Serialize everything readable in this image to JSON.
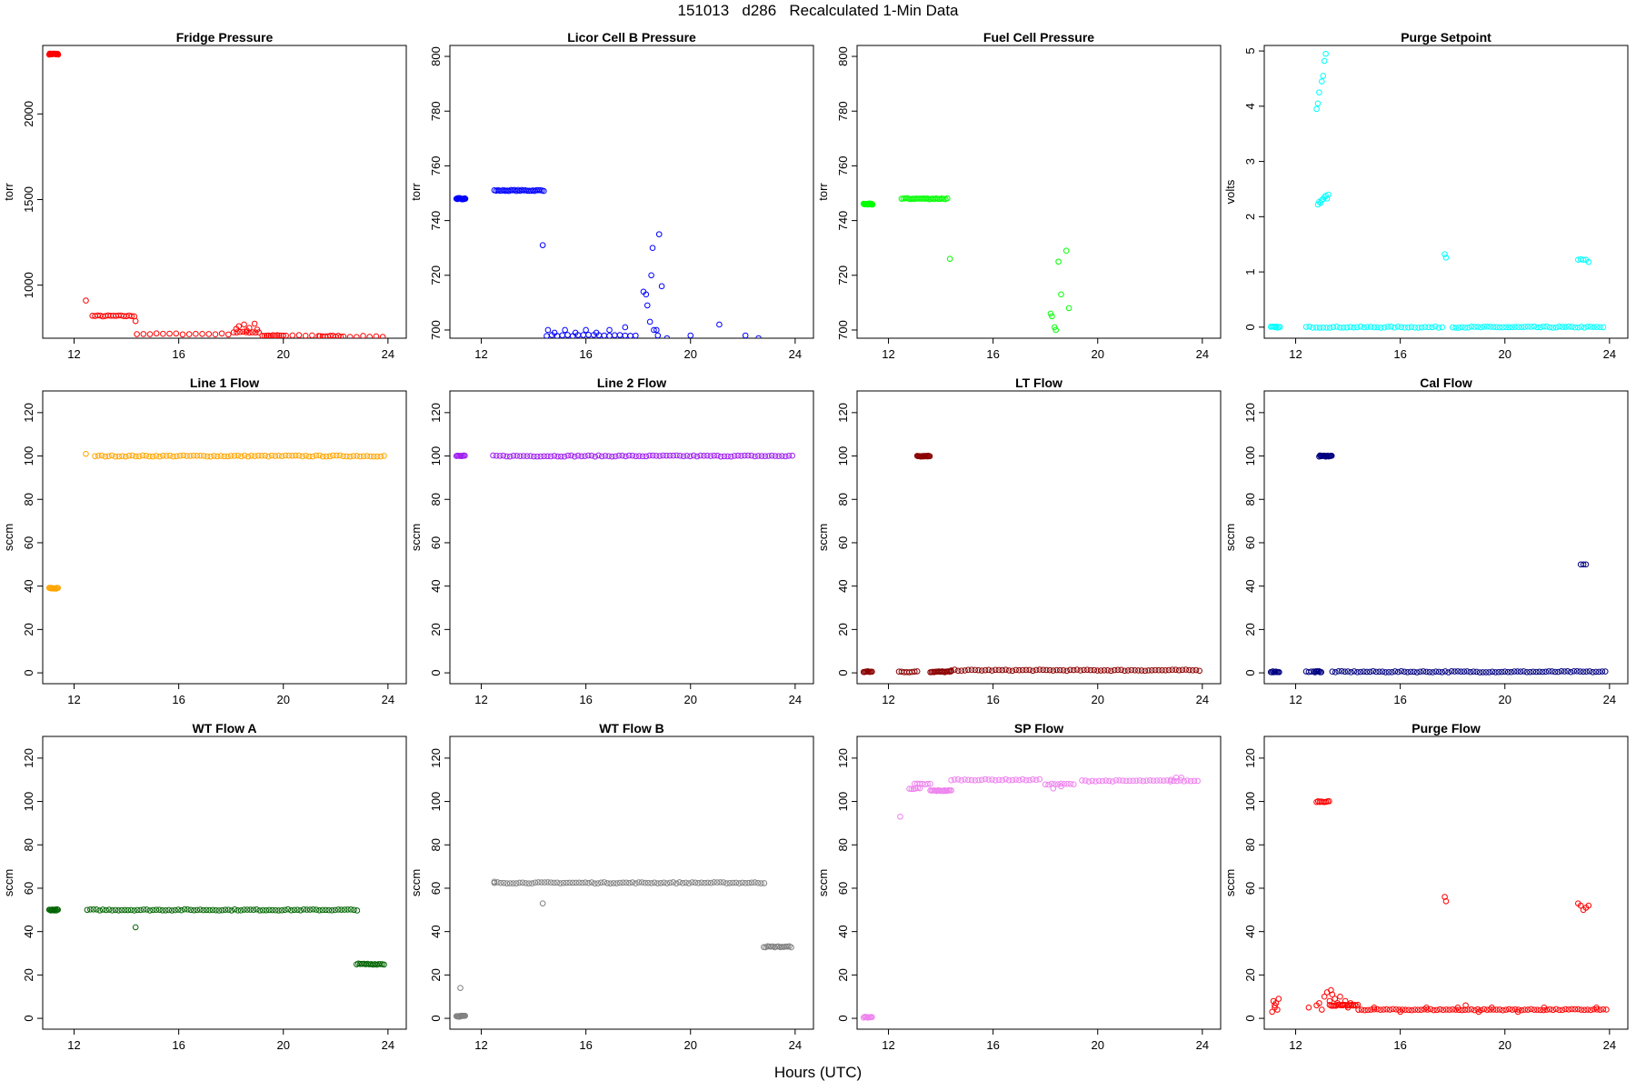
{
  "figure": {
    "title": "151013   d286   Recalculated 1-Min Data",
    "x_common_label": "Hours (UTC)"
  },
  "chart_data": [
    {
      "type": "scatter",
      "title": "Fridge Pressure",
      "ylabel": "torr",
      "color": "#ff0000",
      "xlim": [
        10.8,
        24.7
      ],
      "ylim": [
        690,
        2400
      ],
      "xticks": [
        12,
        16,
        20,
        24
      ],
      "yticks": [
        1000,
        1500,
        2000
      ],
      "segments": [
        [
          11.05,
          11.4,
          2350,
          0.02
        ],
        [
          12.7,
          14.3,
          820,
          0.1
        ],
        [
          14.4,
          18.1,
          715,
          0.25
        ],
        [
          18.1,
          19.1,
          725,
          0.12
        ],
        [
          19.2,
          20.0,
          705,
          0.08
        ],
        [
          20.1,
          21.4,
          705,
          0.25
        ],
        [
          21.4,
          22.2,
          702,
          0.1
        ],
        [
          22.3,
          23.9,
          700,
          0.25
        ]
      ],
      "points": [
        [
          12.45,
          910
        ],
        [
          14.35,
          790
        ],
        [
          18.3,
          760
        ],
        [
          18.5,
          770
        ],
        [
          18.7,
          750
        ],
        [
          18.9,
          775
        ],
        [
          18.6,
          735
        ],
        [
          19.0,
          740
        ],
        [
          18.2,
          745
        ]
      ]
    },
    {
      "type": "scatter",
      "title": "Licor Cell B Pressure",
      "ylabel": "torr",
      "color": "#0000ff",
      "xlim": [
        10.8,
        24.7
      ],
      "ylim": [
        697,
        804
      ],
      "xticks": [
        12,
        16,
        20,
        24
      ],
      "yticks": [
        700,
        720,
        740,
        760,
        780,
        800
      ],
      "segments": [
        [
          11.05,
          11.4,
          748,
          0.02
        ],
        [
          12.5,
          14.4,
          751,
          0.07
        ],
        [
          14.5,
          17.9,
          698,
          0.2
        ]
      ],
      "points": [
        [
          14.35,
          731
        ],
        [
          14.55,
          700
        ],
        [
          14.8,
          699
        ],
        [
          15.2,
          700
        ],
        [
          15.6,
          699
        ],
        [
          16.0,
          700
        ],
        [
          16.4,
          699
        ],
        [
          16.9,
          700
        ],
        [
          17.5,
          701
        ],
        [
          18.2,
          714
        ],
        [
          18.3,
          713
        ],
        [
          18.35,
          709
        ],
        [
          18.45,
          703
        ],
        [
          18.5,
          720
        ],
        [
          18.55,
          730
        ],
        [
          18.7,
          700
        ],
        [
          18.8,
          735
        ],
        [
          18.9,
          716
        ],
        [
          18.6,
          700
        ],
        [
          18.75,
          698
        ],
        [
          19.1,
          697
        ],
        [
          20.0,
          698
        ],
        [
          21.1,
          702
        ],
        [
          22.1,
          698
        ],
        [
          22.6,
          697
        ]
      ]
    },
    {
      "type": "scatter",
      "title": "Fuel Cell Pressure",
      "ylabel": "torr",
      "color": "#00ff00",
      "xlim": [
        10.8,
        24.7
      ],
      "ylim": [
        697,
        804
      ],
      "xticks": [
        12,
        16,
        20,
        24
      ],
      "yticks": [
        700,
        720,
        740,
        760,
        780,
        800
      ],
      "segments": [
        [
          11.05,
          11.4,
          746,
          0.02
        ],
        [
          12.5,
          14.3,
          748,
          0.07
        ]
      ],
      "points": [
        [
          14.35,
          726
        ],
        [
          18.2,
          706
        ],
        [
          18.25,
          705
        ],
        [
          18.35,
          701
        ],
        [
          18.4,
          700
        ],
        [
          18.5,
          725
        ],
        [
          18.6,
          713
        ],
        [
          18.8,
          729
        ],
        [
          18.9,
          708
        ]
      ]
    },
    {
      "type": "scatter",
      "title": "Purge Setpoint",
      "ylabel": "volts",
      "color": "#00ffff",
      "xlim": [
        10.8,
        24.7
      ],
      "ylim": [
        -0.2,
        5.1
      ],
      "xticks": [
        12,
        16,
        20,
        24
      ],
      "yticks": [
        0,
        1,
        2,
        3,
        4,
        5
      ],
      "segments": [
        [
          11.05,
          11.4,
          0,
          0.05
        ],
        [
          12.4,
          17.6,
          0,
          0.13
        ],
        [
          18.0,
          23.8,
          0,
          0.12
        ]
      ],
      "points": [
        [
          12.8,
          3.95
        ],
        [
          12.85,
          4.05
        ],
        [
          12.9,
          4.25
        ],
        [
          13.0,
          4.45
        ],
        [
          13.05,
          4.55
        ],
        [
          13.1,
          4.82
        ],
        [
          13.15,
          4.95
        ],
        [
          12.85,
          2.22
        ],
        [
          12.9,
          2.27
        ],
        [
          12.95,
          2.25
        ],
        [
          13.0,
          2.3
        ],
        [
          13.05,
          2.32
        ],
        [
          13.1,
          2.35
        ],
        [
          13.15,
          2.38
        ],
        [
          13.2,
          2.33
        ],
        [
          13.25,
          2.4
        ],
        [
          17.7,
          1.32
        ],
        [
          17.75,
          1.26
        ],
        [
          22.8,
          1.22
        ],
        [
          22.9,
          1.23
        ],
        [
          23.0,
          1.22
        ],
        [
          23.1,
          1.22
        ],
        [
          23.2,
          1.18
        ]
      ]
    },
    {
      "type": "scatter",
      "title": "Line 1 Flow",
      "ylabel": "sccm",
      "color": "#ffa500",
      "xlim": [
        10.8,
        24.7
      ],
      "ylim": [
        -5,
        130
      ],
      "xticks": [
        12,
        16,
        20,
        24
      ],
      "yticks": [
        0,
        20,
        40,
        60,
        80,
        100,
        120
      ],
      "segments": [
        [
          11.05,
          11.4,
          39,
          0.03
        ],
        [
          12.8,
          23.9,
          100,
          0.13
        ]
      ],
      "points": [
        [
          12.45,
          101
        ]
      ]
    },
    {
      "type": "scatter",
      "title": "Line 2 Flow",
      "ylabel": "sccm",
      "color": "#a020f0",
      "xlim": [
        10.8,
        24.7
      ],
      "ylim": [
        -5,
        130
      ],
      "xticks": [
        12,
        16,
        20,
        24
      ],
      "yticks": [
        0,
        20,
        40,
        60,
        80,
        100,
        120
      ],
      "segments": [
        [
          11.05,
          11.4,
          100,
          0.04
        ],
        [
          12.45,
          23.9,
          100,
          0.13
        ]
      ],
      "points": []
    },
    {
      "type": "scatter",
      "title": "LT Flow",
      "ylabel": "sccm",
      "color": "#8b0000",
      "xlim": [
        10.8,
        24.7
      ],
      "ylim": [
        -5,
        130
      ],
      "xticks": [
        12,
        16,
        20,
        24
      ],
      "yticks": [
        0,
        20,
        40,
        60,
        80,
        100,
        120
      ],
      "segments": [
        [
          11.05,
          11.4,
          0.5,
          0.04
        ],
        [
          12.4,
          13.1,
          0.5,
          0.1
        ],
        [
          13.1,
          13.6,
          100,
          0.03
        ],
        [
          13.6,
          14.4,
          0.5,
          0.05
        ],
        [
          14.4,
          23.9,
          1.2,
          0.13
        ]
      ],
      "points": []
    },
    {
      "type": "scatter",
      "title": "Cal Flow",
      "ylabel": "sccm",
      "color": "#000080",
      "xlim": [
        10.8,
        24.7
      ],
      "ylim": [
        -5,
        130
      ],
      "xticks": [
        12,
        16,
        20,
        24
      ],
      "yticks": [
        0,
        20,
        40,
        60,
        80,
        100,
        120
      ],
      "segments": [
        [
          11.05,
          11.4,
          0.5,
          0.04
        ],
        [
          12.4,
          12.6,
          0.5,
          0.1
        ],
        [
          12.7,
          13.0,
          0.5,
          0.04
        ],
        [
          12.9,
          13.4,
          100,
          0.03
        ],
        [
          13.4,
          23.9,
          0.5,
          0.12
        ]
      ],
      "points": [
        [
          22.9,
          50
        ],
        [
          23.0,
          50
        ],
        [
          23.1,
          50
        ]
      ]
    },
    {
      "type": "scatter",
      "title": "WT Flow A",
      "ylabel": "sccm",
      "color": "#006400",
      "xlim": [
        10.8,
        24.7
      ],
      "ylim": [
        -5,
        130
      ],
      "xticks": [
        12,
        16,
        20,
        24
      ],
      "yticks": [
        0,
        20,
        40,
        60,
        80,
        100,
        120
      ],
      "segments": [
        [
          11.05,
          11.4,
          50,
          0.03
        ],
        [
          12.5,
          22.9,
          50,
          0.12
        ],
        [
          22.8,
          23.9,
          25,
          0.07
        ]
      ],
      "points": [
        [
          14.35,
          42
        ]
      ]
    },
    {
      "type": "scatter",
      "title": "WT Flow B",
      "ylabel": "sccm",
      "color": "#808080",
      "xlim": [
        10.8,
        24.7
      ],
      "ylim": [
        -5,
        130
      ],
      "xticks": [
        12,
        16,
        20,
        24
      ],
      "yticks": [
        0,
        20,
        40,
        60,
        80,
        100,
        120
      ],
      "segments": [
        [
          11.05,
          11.4,
          1,
          0.03
        ],
        [
          12.5,
          22.9,
          62.5,
          0.12
        ],
        [
          22.8,
          23.9,
          33,
          0.07
        ]
      ],
      "points": [
        [
          11.2,
          14
        ],
        [
          12.5,
          63
        ],
        [
          14.35,
          53
        ]
      ]
    },
    {
      "type": "scatter",
      "title": "SP Flow",
      "ylabel": "sccm",
      "color": "#ee82ee",
      "xlim": [
        10.8,
        24.7
      ],
      "ylim": [
        -5,
        130
      ],
      "xticks": [
        12,
        16,
        20,
        24
      ],
      "yticks": [
        0,
        20,
        40,
        60,
        80,
        100,
        120
      ],
      "segments": [
        [
          11.05,
          11.4,
          0.5,
          0.04
        ],
        [
          12.8,
          13.2,
          106,
          0.08
        ],
        [
          13.0,
          13.6,
          108,
          0.1
        ],
        [
          13.6,
          14.4,
          105,
          0.05
        ],
        [
          14.4,
          17.8,
          110,
          0.13
        ],
        [
          18.0,
          19.1,
          108,
          0.12
        ],
        [
          19.4,
          23.9,
          109.5,
          0.13
        ]
      ],
      "points": [
        [
          12.45,
          93
        ],
        [
          18.3,
          106
        ],
        [
          18.6,
          107
        ],
        [
          22.8,
          110
        ],
        [
          23.0,
          111
        ],
        [
          23.2,
          111
        ]
      ]
    },
    {
      "type": "scatter",
      "title": "Purge Flow",
      "ylabel": "sccm",
      "color": "#ff0000",
      "xlim": [
        10.8,
        24.7
      ],
      "ylim": [
        -5,
        130
      ],
      "xticks": [
        12,
        16,
        20,
        24
      ],
      "yticks": [
        0,
        20,
        40,
        60,
        80,
        100,
        120
      ],
      "segments": [
        [
          12.8,
          13.3,
          100,
          0.06
        ],
        [
          13.3,
          14.4,
          6,
          0.06
        ],
        [
          14.4,
          23.9,
          4,
          0.12
        ]
      ],
      "points": [
        [
          11.1,
          3
        ],
        [
          11.15,
          8
        ],
        [
          11.2,
          5
        ],
        [
          11.25,
          7
        ],
        [
          11.3,
          4
        ],
        [
          11.35,
          9
        ],
        [
          11.2,
          6
        ],
        [
          12.5,
          5
        ],
        [
          12.8,
          6
        ],
        [
          12.9,
          7
        ],
        [
          13.0,
          4
        ],
        [
          13.1,
          10
        ],
        [
          13.2,
          12
        ],
        [
          13.3,
          8
        ],
        [
          13.35,
          13
        ],
        [
          13.4,
          11
        ],
        [
          13.5,
          9
        ],
        [
          13.6,
          7
        ],
        [
          13.7,
          10
        ],
        [
          13.8,
          6
        ],
        [
          13.9,
          8
        ],
        [
          14.0,
          5
        ],
        [
          14.1,
          7
        ],
        [
          15.0,
          5
        ],
        [
          16.0,
          3
        ],
        [
          17.0,
          5
        ],
        [
          17.7,
          56
        ],
        [
          17.75,
          54
        ],
        [
          18.2,
          5
        ],
        [
          18.5,
          6
        ],
        [
          19.0,
          3
        ],
        [
          19.5,
          5
        ],
        [
          20.5,
          3
        ],
        [
          21.5,
          5
        ],
        [
          22.8,
          53
        ],
        [
          22.9,
          52
        ],
        [
          23.0,
          50
        ],
        [
          23.1,
          51
        ],
        [
          23.2,
          52
        ],
        [
          23.5,
          5
        ]
      ]
    }
  ]
}
